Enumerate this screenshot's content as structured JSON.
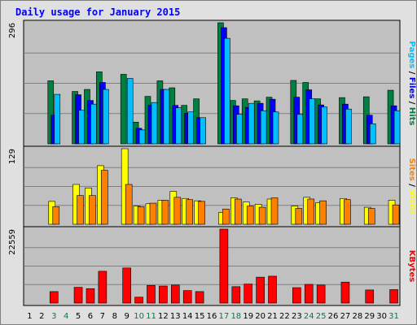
{
  "chart_data": {
    "type": "bar",
    "title": "Daily usage for January 2015",
    "categories": [
      "1",
      "2",
      "3",
      "4",
      "5",
      "6",
      "7",
      "8",
      "9",
      "10",
      "11",
      "12",
      "13",
      "14",
      "15",
      "16",
      "17",
      "18",
      "19",
      "20",
      "21",
      "22",
      "23",
      "24",
      "25",
      "26",
      "27",
      "28",
      "29",
      "30",
      "31"
    ],
    "weekend_days": [
      "3",
      "4",
      "10",
      "11",
      "17",
      "18",
      "24",
      "25",
      "31"
    ],
    "panels": [
      {
        "id": "top",
        "max_label": "296",
        "ymax": 296,
        "axis_label": [
          "Hits",
          "Files",
          "Pages"
        ],
        "axis_colors": [
          "#008040",
          "#0000ff",
          "#00c0ff"
        ],
        "series": [
          {
            "name": "Hits",
            "color": "#008040",
            "values": [
              0,
              0,
              154,
              0,
              128,
              133,
              176,
              0,
              170,
              53,
              116,
              154,
              137,
              94,
              110,
              0,
              296,
              106,
              110,
              105,
              114,
              0,
              155,
              150,
              110,
              0,
              113,
              0,
              115,
              0,
              131
            ]
          },
          {
            "name": "Files",
            "color": "#0000ff",
            "values": [
              0,
              0,
              70,
              0,
              120,
              106,
              150,
              0,
              0,
              38,
              94,
              133,
              94,
              75,
              64,
              0,
              284,
              93,
              89,
              99,
              109,
              0,
              114,
              132,
              95,
              0,
              97,
              0,
              70,
              0,
              93
            ]
          },
          {
            "name": "Pages",
            "color": "#00c0ff",
            "values": [
              0,
              0,
              121,
              0,
              82,
              97,
              133,
              0,
              160,
              34,
              101,
              133,
              88,
              78,
              64,
              0,
              258,
              72,
              99,
              81,
              78,
              0,
              72,
              110,
              90,
              0,
              85,
              0,
              49,
              0,
              81
            ]
          }
        ]
      },
      {
        "id": "mid",
        "max_label": "129",
        "ymax": 129,
        "axis_label": [
          "Visits",
          "Sites"
        ],
        "axis_colors": [
          "#ffff00",
          "#ff8000"
        ],
        "series": [
          {
            "name": "Visits",
            "color": "#ffff00",
            "values": [
              0,
              0,
              39,
              0,
              68,
              62,
              100,
              0,
              129,
              31,
              35,
              41,
              56,
              44,
              40,
              0,
              20,
              45,
              38,
              34,
              43,
              0,
              31,
              46,
              37,
              0,
              44,
              0,
              29,
              0,
              41
            ]
          },
          {
            "name": "Sites",
            "color": "#ff8000",
            "values": [
              0,
              0,
              30,
              0,
              49,
              49,
              92,
              0,
              68,
              30,
              36,
              41,
              46,
              42,
              39,
              0,
              26,
              43,
              31,
              29,
              45,
              0,
              27,
              43,
              40,
              0,
              42,
              0,
              27,
              0,
              33
            ]
          }
        ]
      },
      {
        "id": "bot",
        "max_label": "22559",
        "ymax": 22559,
        "axis_label": [
          "KBytes"
        ],
        "axis_colors": [
          "#ff0000"
        ],
        "series": [
          {
            "name": "KBytes",
            "color": "#ff0000",
            "values": [
              0,
              0,
              3500,
              0,
              4800,
              4400,
              9700,
              0,
              10700,
              1800,
              5400,
              5200,
              5500,
              3800,
              3500,
              0,
              22559,
              5000,
              5800,
              7900,
              8200,
              0,
              4700,
              5700,
              5500,
              0,
              6400,
              0,
              4000,
              0,
              4100
            ]
          }
        ]
      }
    ]
  }
}
